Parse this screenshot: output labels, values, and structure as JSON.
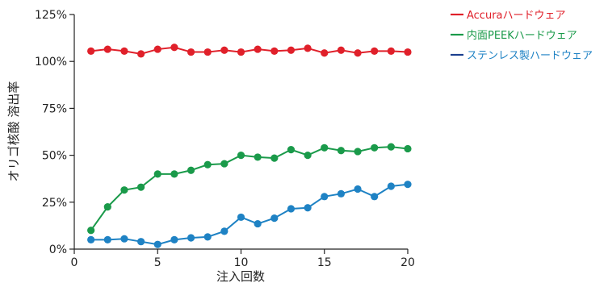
{
  "chart_data": {
    "type": "line",
    "title": "",
    "xlabel": "注入回数",
    "ylabel": "オリゴ核酸 溶出率",
    "xlim": [
      0,
      20
    ],
    "ylim": [
      0,
      125
    ],
    "x_ticks": [
      "0",
      "5",
      "10",
      "15",
      "20"
    ],
    "y_ticks": [
      "0%",
      "25%",
      "50%",
      "75%",
      "100%",
      "125%"
    ],
    "grid": false,
    "legend_position": "top-right",
    "x": [
      1,
      2,
      3,
      4,
      5,
      6,
      7,
      8,
      9,
      10,
      11,
      12,
      13,
      14,
      15,
      16,
      17,
      18,
      19,
      20
    ],
    "series": [
      {
        "name": "Accuraハードウェア",
        "color": "#e0202a",
        "values": [
          105.5,
          106.5,
          105.5,
          104,
          106.5,
          107.5,
          105,
          105,
          106,
          105,
          106.5,
          105.5,
          106,
          107,
          104.5,
          106,
          104.5,
          105.5,
          105.5,
          105
        ]
      },
      {
        "name": "内面PEEKハードウェア",
        "color": "#1a9a4a",
        "values": [
          10,
          22.5,
          31.5,
          33,
          40,
          40,
          42,
          45,
          45.5,
          50,
          49,
          48.5,
          53,
          50,
          54,
          52.5,
          52,
          54,
          54.5,
          53.5
        ]
      },
      {
        "name": "ステンレス製ハードウェア",
        "color": "#1e82c4",
        "values": [
          5,
          5,
          5.5,
          4,
          2.5,
          5,
          6,
          6.5,
          9.5,
          17,
          13.5,
          16.5,
          21.5,
          22,
          28,
          29.5,
          32,
          28,
          33.5,
          34.5
        ]
      }
    ],
    "legend_line_colors": [
      "#e0202a",
      "#1a9a4a",
      "#1b3f8f"
    ]
  }
}
